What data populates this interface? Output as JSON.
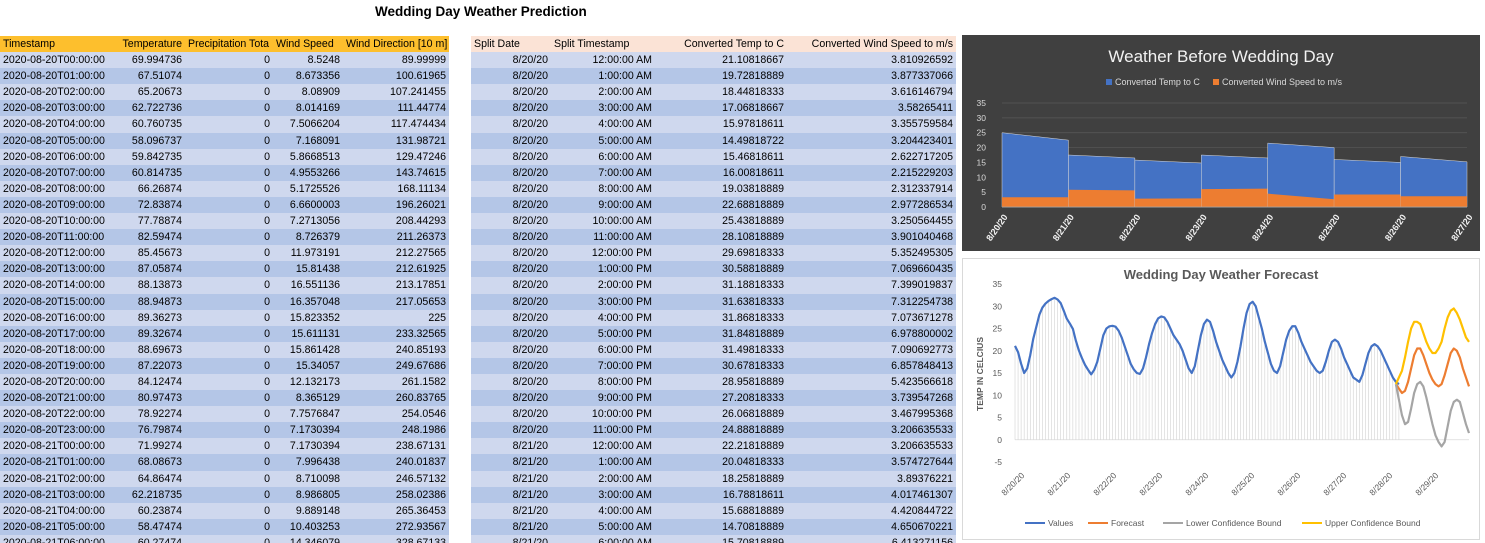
{
  "page": {
    "title": "Wedding Day Weather Prediction"
  },
  "left_table": {
    "headers": [
      "Timestamp",
      "Temperature",
      "Precipitation Tota",
      "Wind Speed",
      "Wind Direction [10 m]"
    ],
    "rows": [
      [
        "2020-08-20T00:00:00",
        "69.994736",
        "0",
        "8.5248",
        "89.99999"
      ],
      [
        "2020-08-20T01:00:00",
        "67.51074",
        "0",
        "8.673356",
        "100.61965"
      ],
      [
        "2020-08-20T02:00:00",
        "65.20673",
        "0",
        "8.08909",
        "107.241455"
      ],
      [
        "2020-08-20T03:00:00",
        "62.722736",
        "0",
        "8.014169",
        "111.44774"
      ],
      [
        "2020-08-20T04:00:00",
        "60.760735",
        "0",
        "7.5066204",
        "117.474434"
      ],
      [
        "2020-08-20T05:00:00",
        "58.096737",
        "0",
        "7.168091",
        "131.98721"
      ],
      [
        "2020-08-20T06:00:00",
        "59.842735",
        "0",
        "5.8668513",
        "129.47246"
      ],
      [
        "2020-08-20T07:00:00",
        "60.814735",
        "0",
        "4.9553266",
        "143.74615"
      ],
      [
        "2020-08-20T08:00:00",
        "66.26874",
        "0",
        "5.1725526",
        "168.11134"
      ],
      [
        "2020-08-20T09:00:00",
        "72.83874",
        "0",
        "6.6600003",
        "196.26021"
      ],
      [
        "2020-08-20T10:00:00",
        "77.78874",
        "0",
        "7.2713056",
        "208.44293"
      ],
      [
        "2020-08-20T11:00:00",
        "82.59474",
        "0",
        "8.726379",
        "211.26373"
      ],
      [
        "2020-08-20T12:00:00",
        "85.45673",
        "0",
        "11.973191",
        "212.27565"
      ],
      [
        "2020-08-20T13:00:00",
        "87.05874",
        "0",
        "15.81438",
        "212.61925"
      ],
      [
        "2020-08-20T14:00:00",
        "88.13873",
        "0",
        "16.551136",
        "213.17851"
      ],
      [
        "2020-08-20T15:00:00",
        "88.94873",
        "0",
        "16.357048",
        "217.05653"
      ],
      [
        "2020-08-20T16:00:00",
        "89.36273",
        "0",
        "15.823352",
        "225"
      ],
      [
        "2020-08-20T17:00:00",
        "89.32674",
        "0",
        "15.611131",
        "233.32565"
      ],
      [
        "2020-08-20T18:00:00",
        "88.69673",
        "0",
        "15.861428",
        "240.85193"
      ],
      [
        "2020-08-20T19:00:00",
        "87.22073",
        "0",
        "15.34057",
        "249.67686"
      ],
      [
        "2020-08-20T20:00:00",
        "84.12474",
        "0",
        "12.132173",
        "261.1582"
      ],
      [
        "2020-08-20T21:00:00",
        "80.97473",
        "0",
        "8.365129",
        "260.83765"
      ],
      [
        "2020-08-20T22:00:00",
        "78.92274",
        "0",
        "7.7576847",
        "254.0546"
      ],
      [
        "2020-08-20T23:00:00",
        "76.79874",
        "0",
        "7.1730394",
        "248.1986"
      ],
      [
        "2020-08-21T00:00:00",
        "71.99274",
        "0",
        "7.1730394",
        "238.67131"
      ],
      [
        "2020-08-21T01:00:00",
        "68.08673",
        "0",
        "7.996438",
        "240.01837"
      ],
      [
        "2020-08-21T02:00:00",
        "64.86474",
        "0",
        "8.710098",
        "246.57132"
      ],
      [
        "2020-08-21T03:00:00",
        "62.218735",
        "0",
        "8.986805",
        "258.02386"
      ],
      [
        "2020-08-21T04:00:00",
        "60.23874",
        "0",
        "9.889148",
        "265.36453"
      ],
      [
        "2020-08-21T05:00:00",
        "58.47474",
        "0",
        "10.403253",
        "272.93567"
      ],
      [
        "2020-08-21T06:00:00",
        "60.27474",
        "0",
        "14.346079",
        "328.67133"
      ]
    ]
  },
  "right_table": {
    "headers": [
      "Split Date",
      "Split Timestamp",
      "Converted Temp to C",
      "Converted Wind Speed to m/s"
    ],
    "rows": [
      [
        "8/20/20",
        "12:00:00 AM",
        "21.10818667",
        "3.810926592"
      ],
      [
        "8/20/20",
        "1:00:00 AM",
        "19.72818889",
        "3.877337066"
      ],
      [
        "8/20/20",
        "2:00:00 AM",
        "18.44818333",
        "3.616146794"
      ],
      [
        "8/20/20",
        "3:00:00 AM",
        "17.06818667",
        "3.58265411"
      ],
      [
        "8/20/20",
        "4:00:00 AM",
        "15.97818611",
        "3.355759584"
      ],
      [
        "8/20/20",
        "5:00:00 AM",
        "14.49818722",
        "3.204423401"
      ],
      [
        "8/20/20",
        "6:00:00 AM",
        "15.46818611",
        "2.622717205"
      ],
      [
        "8/20/20",
        "7:00:00 AM",
        "16.00818611",
        "2.215229203"
      ],
      [
        "8/20/20",
        "8:00:00 AM",
        "19.03818889",
        "2.312337914"
      ],
      [
        "8/20/20",
        "9:00:00 AM",
        "22.68818889",
        "2.977286534"
      ],
      [
        "8/20/20",
        "10:00:00 AM",
        "25.43818889",
        "3.250564455"
      ],
      [
        "8/20/20",
        "11:00:00 AM",
        "28.10818889",
        "3.901040468"
      ],
      [
        "8/20/20",
        "12:00:00 PM",
        "29.69818333",
        "5.352495305"
      ],
      [
        "8/20/20",
        "1:00:00 PM",
        "30.58818889",
        "7.069660435"
      ],
      [
        "8/20/20",
        "2:00:00 PM",
        "31.18818333",
        "7.399019837"
      ],
      [
        "8/20/20",
        "3:00:00 PM",
        "31.63818333",
        "7.312254738"
      ],
      [
        "8/20/20",
        "4:00:00 PM",
        "31.86818333",
        "7.073671278"
      ],
      [
        "8/20/20",
        "5:00:00 PM",
        "31.84818889",
        "6.978800002"
      ],
      [
        "8/20/20",
        "6:00:00 PM",
        "31.49818333",
        "7.090692773"
      ],
      [
        "8/20/20",
        "7:00:00 PM",
        "30.67818333",
        "6.857848413"
      ],
      [
        "8/20/20",
        "8:00:00 PM",
        "28.95818889",
        "5.423566618"
      ],
      [
        "8/20/20",
        "9:00:00 PM",
        "27.20818333",
        "3.739547268"
      ],
      [
        "8/20/20",
        "10:00:00 PM",
        "26.06818889",
        "3.467995368"
      ],
      [
        "8/20/20",
        "11:00:00 PM",
        "24.88818889",
        "3.206635533"
      ],
      [
        "8/21/20",
        "12:00:00 AM",
        "22.21818889",
        "3.206635533"
      ],
      [
        "8/21/20",
        "1:00:00 AM",
        "20.04818333",
        "3.574727644"
      ],
      [
        "8/21/20",
        "2:00:00 AM",
        "18.25818889",
        "3.89376221"
      ],
      [
        "8/21/20",
        "3:00:00 AM",
        "16.78818611",
        "4.017461307"
      ],
      [
        "8/21/20",
        "4:00:00 AM",
        "15.68818889",
        "4.420844722"
      ],
      [
        "8/21/20",
        "5:00:00 AM",
        "14.70818889",
        "4.650670221"
      ],
      [
        "8/21/20",
        "6:00:00 AM",
        "15.70818889",
        "6.413271156"
      ]
    ]
  },
  "colors": {
    "left_header": "#fdbf2d",
    "right_header": "#fbe3d6",
    "row_band_light": "#cfd8ee",
    "row_band_dark": "#b4c6e7",
    "series_blue": "#4472c4",
    "series_orange": "#ed7d31",
    "series_gray": "#a5a5a5",
    "series_yellow": "#ffc000"
  },
  "chart_data": [
    {
      "type": "area",
      "title": "Weather Before Wedding Day",
      "legend_position": "top",
      "categories": [
        "8/20/20",
        "8/21/20",
        "8/22/20",
        "8/23/20",
        "8/24/20",
        "8/25/20",
        "8/26/20",
        "8/27/20"
      ],
      "ylim": [
        0,
        35
      ],
      "yticks": [
        "0",
        "5",
        "10",
        "15",
        "20",
        "25",
        "30",
        "35"
      ],
      "series": [
        {
          "name": "Converted Temp to C",
          "segments": [
            [
              25,
              22.5
            ],
            [
              17.5,
              16.5
            ],
            [
              15.8,
              14.8
            ],
            [
              17.5,
              16.5
            ],
            [
              21.5,
              20
            ],
            [
              16,
              15
            ],
            [
              17,
              15.2
            ]
          ]
        },
        {
          "name": "Converted Wind Speed to m/s",
          "segments": [
            [
              3.3,
              3.3
            ],
            [
              5.8,
              5.6
            ],
            [
              2.8,
              2.9
            ],
            [
              6,
              6.2
            ],
            [
              4.5,
              2.6
            ],
            [
              4.2,
              4.2
            ],
            [
              3.6,
              3.6
            ]
          ]
        }
      ]
    },
    {
      "type": "line",
      "title": "Wedding Day Weather Forecast",
      "ylabel": "TEMP IN CELCIUS",
      "ylim": [
        -5,
        35
      ],
      "yticks": [
        "-5",
        "0",
        "5",
        "10",
        "15",
        "20",
        "25",
        "30",
        "35"
      ],
      "xticks": [
        "8/20/20",
        "8/21/20",
        "8/22/20",
        "8/23/20",
        "8/24/20",
        "8/25/20",
        "8/26/20",
        "8/27/20",
        "8/28/20",
        "8/29/20"
      ],
      "legend_position": "bottom",
      "series": [
        {
          "name": "Values",
          "values": [
            21.1,
            19.7,
            17.1,
            15.0,
            16.0,
            19.0,
            22.7,
            25.4,
            28.1,
            29.7,
            30.6,
            31.2,
            31.6,
            31.9,
            31.5,
            30.7,
            29.0,
            27.2,
            26.1,
            24.9,
            22.2,
            20.0,
            18.3,
            16.8,
            15.7,
            14.7,
            15.7,
            17.5,
            20.5,
            23.5,
            25.0,
            25.5,
            25.6,
            25.4,
            24.5,
            23.0,
            21.0,
            19.0,
            17.0,
            15.8,
            15.0,
            14.8,
            16.0,
            18.5,
            21.5,
            24.0,
            26.0,
            27.3,
            27.7,
            27.5,
            26.5,
            25.0,
            23.5,
            22.5,
            21.5,
            20.0,
            18.0,
            16.0,
            15.0,
            16.5,
            20.0,
            23.5,
            26.0,
            27.0,
            26.5,
            24.5,
            22.0,
            20.0,
            18.0,
            16.5,
            15.0,
            14.0,
            15.0,
            17.5,
            21.0,
            25.0,
            28.5,
            30.5,
            31.0,
            30.0,
            27.5,
            25.0,
            22.0,
            19.5,
            17.0,
            15.5,
            15.0,
            16.5,
            19.5,
            22.5,
            24.5,
            25.5,
            25.5,
            24.0,
            22.0,
            20.5,
            19.0,
            17.5,
            16.5,
            15.5,
            15.0,
            15.5,
            17.5,
            20.0,
            22.0,
            22.5,
            22.0,
            20.5,
            18.5,
            17.0,
            15.5,
            14.0,
            13.5,
            13.0,
            14.5,
            17.0,
            19.5,
            21.0,
            21.5,
            21.0,
            20.0,
            18.5,
            17.0,
            15.5,
            14.0,
            13.0,
            12.5
          ]
        },
        {
          "name": "Forecast",
          "start": 125,
          "values": [
            12.5,
            11.5,
            10.5,
            11.0,
            13.0,
            16.0,
            19.0,
            20.5,
            20.5,
            19.0,
            17.0,
            15.0,
            13.5,
            12.5,
            12.0,
            12.5,
            14.5,
            17.0,
            19.5,
            20.5,
            20.0,
            18.5,
            16.0,
            14.0,
            12.0
          ]
        },
        {
          "name": "Lower Confidence Bound",
          "start": 125,
          "values": [
            12.5,
            9.0,
            5.5,
            3.5,
            4.0,
            7.0,
            10.5,
            12.5,
            13.0,
            12.0,
            9.5,
            6.5,
            3.5,
            1.0,
            -0.5,
            -1.5,
            -0.5,
            3.0,
            6.5,
            8.5,
            9.0,
            8.5,
            6.0,
            3.5,
            1.5
          ]
        },
        {
          "name": "Upper Confidence Bound",
          "start": 125,
          "values": [
            12.5,
            14.0,
            15.5,
            18.5,
            22.0,
            25.0,
            26.5,
            26.5,
            26.0,
            24.0,
            22.0,
            20.5,
            19.5,
            19.5,
            20.5,
            22.0,
            25.0,
            27.5,
            29.0,
            29.5,
            28.5,
            27.0,
            25.0,
            23.0,
            22.0
          ]
        }
      ]
    }
  ]
}
